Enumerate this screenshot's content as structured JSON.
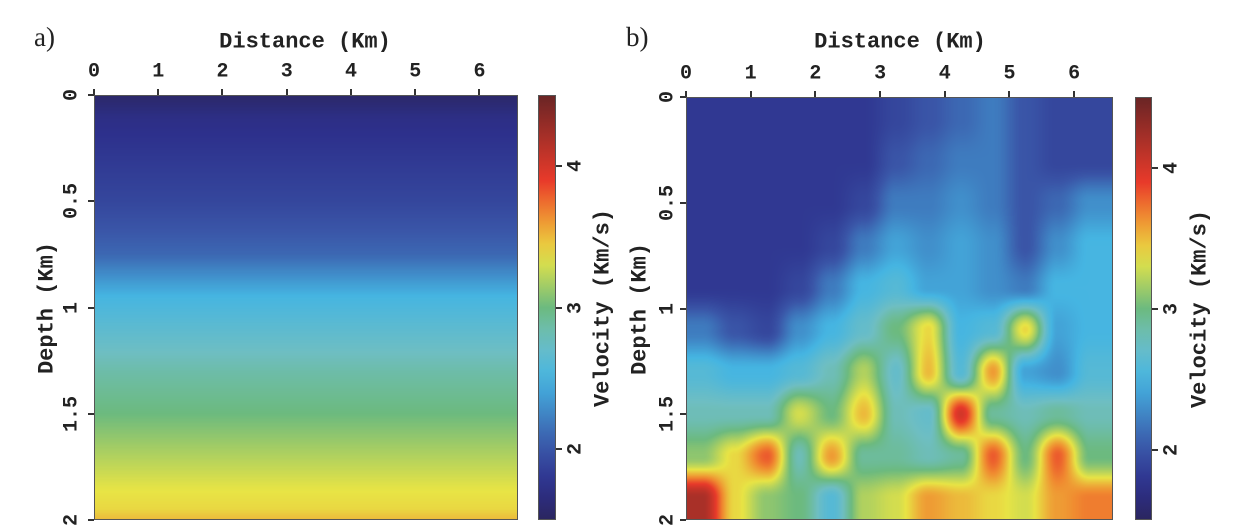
{
  "chart_data": [
    {
      "type": "heatmap",
      "panel_label": "a)",
      "xlabel": "Distance (Km)",
      "ylabel": "Depth (Km)",
      "colorbar_label": "Velocity (Km/s)",
      "xlim": [
        0,
        6.6
      ],
      "ylim": [
        2,
        0
      ],
      "xticks": [
        "0",
        "1",
        "2",
        "3",
        "4",
        "5",
        "6"
      ],
      "yticks": [
        "0",
        "0.5",
        "1",
        "1.5",
        "2"
      ],
      "colorbar_ticks": [
        "2",
        "3",
        "4"
      ],
      "color_range": [
        1.5,
        4.5
      ],
      "colormap": "jet",
      "profile_depth": [
        0,
        0.1,
        0.5,
        0.75,
        0.95,
        1.1,
        1.3,
        1.5,
        1.7,
        1.85,
        1.95,
        2.0
      ],
      "profile_velocity": [
        1.55,
        1.7,
        1.9,
        2.1,
        2.5,
        2.65,
        2.85,
        3.0,
        3.2,
        3.35,
        3.4,
        3.5
      ]
    },
    {
      "type": "heatmap",
      "panel_label": "b)",
      "xlabel": "Distance (Km)",
      "ylabel": "Depth (Km)",
      "colorbar_label": "Velocity (Km/s)",
      "xlim": [
        0,
        6.6
      ],
      "ylim": [
        2,
        0
      ],
      "xticks": [
        "0",
        "1",
        "2",
        "3",
        "4",
        "5",
        "6"
      ],
      "yticks": [
        "0",
        "0.5",
        "1",
        "1.5",
        "2"
      ],
      "colorbar_ticks": [
        "2",
        "3",
        "4"
      ],
      "color_range": [
        1.5,
        4.5
      ],
      "colormap": "jet",
      "grid_x": [
        0.25,
        0.75,
        1.25,
        1.75,
        2.25,
        2.75,
        3.25,
        3.75,
        4.25,
        4.75,
        5.25,
        5.75,
        6.25
      ],
      "grid_depth": [
        0.1,
        0.3,
        0.5,
        0.7,
        0.9,
        1.1,
        1.3,
        1.5,
        1.7,
        1.9
      ],
      "values": [
        [
          1.8,
          1.8,
          1.8,
          1.8,
          1.8,
          1.8,
          1.9,
          2.0,
          2.1,
          2.2,
          2.0,
          1.9,
          1.9
        ],
        [
          1.8,
          1.8,
          1.8,
          1.8,
          1.8,
          1.8,
          2.0,
          2.1,
          2.2,
          2.2,
          2.0,
          1.9,
          1.9
        ],
        [
          1.8,
          1.8,
          1.8,
          1.8,
          1.8,
          1.9,
          2.2,
          2.2,
          2.3,
          2.2,
          2.0,
          2.1,
          2.3
        ],
        [
          1.8,
          1.8,
          1.8,
          1.8,
          1.9,
          2.2,
          2.4,
          2.3,
          2.4,
          2.3,
          2.0,
          2.3,
          2.5
        ],
        [
          1.8,
          1.8,
          1.8,
          1.9,
          2.2,
          2.5,
          2.6,
          2.4,
          2.4,
          2.3,
          2.2,
          2.5,
          2.5
        ],
        [
          2.2,
          2.0,
          1.9,
          2.3,
          2.5,
          2.7,
          3.0,
          3.4,
          2.5,
          2.6,
          3.4,
          2.4,
          2.5
        ],
        [
          2.6,
          2.5,
          2.5,
          2.6,
          2.8,
          3.2,
          2.7,
          3.5,
          2.6,
          3.6,
          2.4,
          2.3,
          2.6
        ],
        [
          2.8,
          2.8,
          2.8,
          3.3,
          3.0,
          3.5,
          2.8,
          2.7,
          4.0,
          2.9,
          2.8,
          2.9,
          2.8
        ],
        [
          3.1,
          3.4,
          3.8,
          2.8,
          3.6,
          2.9,
          2.9,
          2.8,
          2.9,
          3.8,
          3.0,
          3.8,
          3.0
        ],
        [
          4.2,
          3.4,
          3.1,
          3.0,
          2.6,
          3.2,
          3.3,
          3.6,
          3.5,
          3.4,
          3.3,
          3.6,
          3.7
        ]
      ]
    }
  ]
}
